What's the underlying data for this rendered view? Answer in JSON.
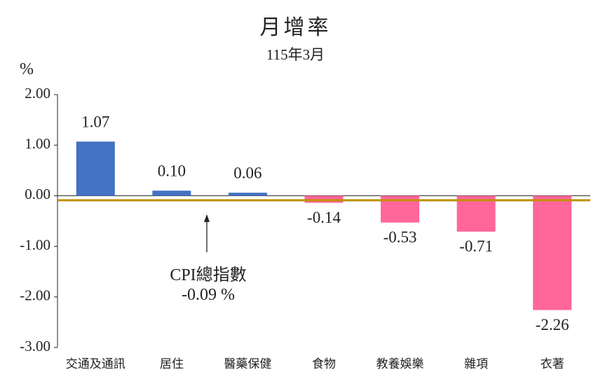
{
  "title": "月增率",
  "subtitle": "115年3月",
  "unit": "%",
  "annotation": {
    "label": "CPI總指數",
    "value_text": "-0.09 %"
  },
  "colors": {
    "positive": "#4472C4",
    "negative": "#FF6699",
    "reference": "#BF9000",
    "axis": "#222222"
  },
  "chart_data": {
    "type": "bar",
    "categories": [
      "交通及通訊",
      "居住",
      "醫藥保健",
      "食物",
      "教養娛樂",
      "雜項",
      "衣著"
    ],
    "values": [
      1.07,
      0.1,
      0.06,
      -0.14,
      -0.53,
      -0.71,
      -2.26
    ],
    "data_labels": [
      "1.07",
      "0.10",
      "0.06",
      "-0.14",
      "-0.53",
      "-0.71",
      "-2.26"
    ],
    "y_ticks": [
      "2.00",
      "1.00",
      "0.00",
      "-1.00",
      "-2.00",
      "-3.00"
    ],
    "ylim": [
      -3,
      2
    ],
    "reference_line": -0.09,
    "grid": false,
    "legend": "none"
  }
}
